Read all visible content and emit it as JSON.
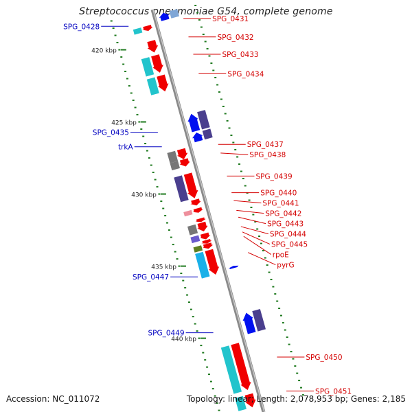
{
  "title": "Streptococcus pneumoniae G54, complete genome",
  "footer": {
    "accession": "Accession: NC_011072",
    "topology": "Topology: linear; Length: 2,078,953 bp; Genes: 2,185"
  },
  "colors": {
    "backbone": "#8a8a8a",
    "tick": "#1f7a1f",
    "label_plus": "#d40000",
    "label_minus": "#0000c0"
  },
  "scale_labels": [
    {
      "kbp": 420,
      "text": "420 kbp"
    },
    {
      "kbp": 425,
      "text": "425 kbp"
    },
    {
      "kbp": 430,
      "text": "430 kbp"
    },
    {
      "kbp": 435,
      "text": "435 kbp"
    },
    {
      "kbp": 440,
      "text": "440 kbp"
    }
  ],
  "genes": [
    {
      "label": "SPG_0428",
      "strand": "minus",
      "start": 418.4,
      "end": 418.9,
      "cog": "#7fa6d6"
    },
    {
      "label": "SPG_0431",
      "strand": "plus",
      "start": 418.95,
      "end": 419.3,
      "cog": "#22c4cc"
    },
    {
      "label": "SPG_0432",
      "strand": "plus",
      "start": 420.0,
      "end": 420.8,
      "cog": ""
    },
    {
      "label": "SPG_0433",
      "strand": "plus",
      "start": 421.0,
      "end": 422.2,
      "cog": "#22c4cc"
    },
    {
      "label": "SPG_0434",
      "strand": "plus",
      "start": 422.4,
      "end": 423.5,
      "cog": "#22c4cc"
    },
    {
      "label": "SPG_0435",
      "strand": "minus",
      "start": 425.4,
      "end": 426.6,
      "cog": "#4a3f8e"
    },
    {
      "label": "trkA",
      "strand": "minus",
      "start": 426.7,
      "end": 427.3,
      "cog": "#4a3f8e"
    },
    {
      "label": "SPG_0437",
      "strand": "plus",
      "start": 427.5,
      "end": 428.2,
      "cog": "#777777"
    },
    {
      "label": "SPG_0438",
      "strand": "plus",
      "start": 428.2,
      "end": 428.7,
      "cog": "#777777"
    },
    {
      "label": "SPG_0439",
      "strand": "plus",
      "start": 429.2,
      "end": 430.9,
      "cog": "#4a3f8e"
    },
    {
      "label": "SPG_0440",
      "strand": "plus",
      "start": 431.0,
      "end": 431.4,
      "cog": ""
    },
    {
      "label": "SPG_0441",
      "strand": "plus",
      "start": 431.6,
      "end": 431.9,
      "cog": "#ee8f9c"
    },
    {
      "label": "SPG_0442",
      "strand": "plus",
      "start": 432.3,
      "end": 432.55,
      "cog": ""
    },
    {
      "label": "SPG_0443",
      "strand": "plus",
      "start": 432.6,
      "end": 433.2,
      "cog": "#777777"
    },
    {
      "label": "SPG_0444",
      "strand": "plus",
      "start": 433.35,
      "end": 433.75,
      "cog": "#6a5acd"
    },
    {
      "label": "SPG_0445",
      "strand": "plus",
      "start": 433.8,
      "end": 434.05,
      "cog": ""
    },
    {
      "label": "rpoE",
      "strand": "plus",
      "start": 434.05,
      "end": 434.4,
      "cog": "#5f7f1f"
    },
    {
      "label": "pyrG",
      "strand": "plus",
      "start": 434.5,
      "end": 436.2,
      "cog": "#1ab0e8"
    },
    {
      "label": "SPG_0447",
      "strand": "minus",
      "start": 435.95,
      "end": 436.1,
      "cog": ""
    },
    {
      "label": "SPG_0449",
      "strand": "minus",
      "start": 439.2,
      "end": 440.6,
      "cog": "#4a3f8e"
    },
    {
      "label": "SPG_0450",
      "strand": "plus",
      "start": 441.0,
      "end": 444.2,
      "cog": "#22c4cc"
    },
    {
      "label": "SPG_0451",
      "strand": "plus",
      "start": 444.5,
      "end": 445.4,
      "cog": "#22c4cc"
    }
  ]
}
